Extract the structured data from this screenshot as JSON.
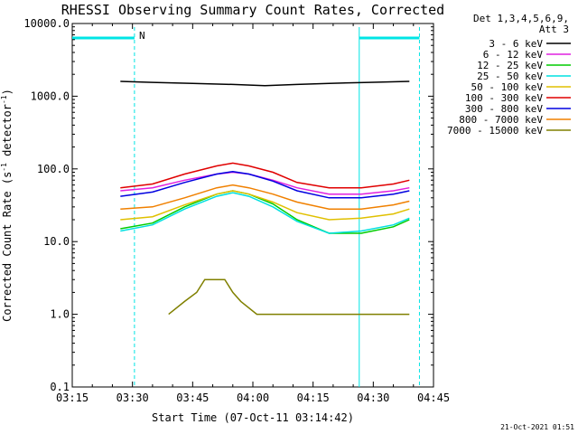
{
  "chart_data": {
    "type": "line",
    "title": "RHESSI Observing Summary Count Rates, Corrected",
    "xlabel": "Start Time (07-Oct-11 03:14:42)",
    "ylabel_main": "Corrected Count Rate (s",
    "ylabel_sup1": "-1",
    "ylabel_mid": " detector",
    "ylabel_sup2": "-1",
    "ylabel_end": ")",
    "yscale": "log",
    "ylim": [
      0.1,
      10000
    ],
    "xlim_minutes": [
      0,
      90
    ],
    "x_tick_labels": [
      "03:15",
      "03:30",
      "03:45",
      "04:00",
      "04:15",
      "04:30",
      "04:45"
    ],
    "y_tick_labels": [
      "0.1",
      "1.0",
      "10.0",
      "100.0",
      "1000.0",
      "10000.0"
    ],
    "legend_header": [
      "Det 1,3,4,5,6,9,",
      "Att 3"
    ],
    "series": [
      {
        "name": "3 - 6 keV",
        "color": "#000000",
        "points": [
          [
            12,
            1600
          ],
          [
            20,
            1550
          ],
          [
            30,
            1500
          ],
          [
            40,
            1450
          ],
          [
            48,
            1400
          ],
          [
            56,
            1450
          ],
          [
            64,
            1500
          ],
          [
            74,
            1550
          ],
          [
            84,
            1600
          ]
        ]
      },
      {
        "name": "6 - 12 keV",
        "color": "#e020e0",
        "points": [
          [
            12,
            50
          ],
          [
            20,
            55
          ],
          [
            28,
            70
          ],
          [
            36,
            85
          ],
          [
            40,
            90
          ],
          [
            44,
            85
          ],
          [
            50,
            70
          ],
          [
            56,
            55
          ],
          [
            64,
            45
          ],
          [
            72,
            45
          ],
          [
            80,
            50
          ],
          [
            84,
            55
          ]
        ]
      },
      {
        "name": "12 - 25 keV",
        "color": "#00cc00",
        "points": [
          [
            12,
            15
          ],
          [
            20,
            18
          ],
          [
            28,
            30
          ],
          [
            36,
            45
          ],
          [
            40,
            50
          ],
          [
            44,
            45
          ],
          [
            50,
            33
          ],
          [
            56,
            20
          ],
          [
            64,
            13
          ],
          [
            72,
            13
          ],
          [
            80,
            16
          ],
          [
            84,
            20
          ]
        ]
      },
      {
        "name": "25 - 50 keV",
        "color": "#00e0e0",
        "points": [
          [
            12,
            14
          ],
          [
            20,
            17
          ],
          [
            28,
            28
          ],
          [
            36,
            42
          ],
          [
            40,
            47
          ],
          [
            44,
            42
          ],
          [
            50,
            30
          ],
          [
            56,
            19
          ],
          [
            64,
            13
          ],
          [
            72,
            14
          ],
          [
            80,
            17
          ],
          [
            84,
            21
          ]
        ]
      },
      {
        "name": "50 - 100 keV",
        "color": "#e0c000",
        "points": [
          [
            12,
            20
          ],
          [
            20,
            22
          ],
          [
            28,
            32
          ],
          [
            36,
            45
          ],
          [
            40,
            50
          ],
          [
            44,
            45
          ],
          [
            50,
            35
          ],
          [
            56,
            25
          ],
          [
            64,
            20
          ],
          [
            72,
            21
          ],
          [
            80,
            24
          ],
          [
            84,
            28
          ]
        ]
      },
      {
        "name": "100 - 300 keV",
        "color": "#e00000",
        "points": [
          [
            12,
            55
          ],
          [
            20,
            62
          ],
          [
            28,
            85
          ],
          [
            36,
            110
          ],
          [
            40,
            120
          ],
          [
            44,
            110
          ],
          [
            50,
            90
          ],
          [
            56,
            65
          ],
          [
            64,
            55
          ],
          [
            72,
            55
          ],
          [
            80,
            62
          ],
          [
            84,
            70
          ]
        ]
      },
      {
        "name": "300 - 800 keV",
        "color": "#0000e0",
        "points": [
          [
            12,
            42
          ],
          [
            20,
            48
          ],
          [
            28,
            65
          ],
          [
            36,
            85
          ],
          [
            40,
            92
          ],
          [
            44,
            85
          ],
          [
            50,
            68
          ],
          [
            56,
            50
          ],
          [
            64,
            40
          ],
          [
            72,
            40
          ],
          [
            80,
            45
          ],
          [
            84,
            50
          ]
        ]
      },
      {
        "name": "800 - 7000 keV",
        "color": "#f08000",
        "points": [
          [
            12,
            28
          ],
          [
            20,
            30
          ],
          [
            28,
            40
          ],
          [
            36,
            55
          ],
          [
            40,
            60
          ],
          [
            44,
            55
          ],
          [
            50,
            45
          ],
          [
            56,
            35
          ],
          [
            64,
            28
          ],
          [
            72,
            28
          ],
          [
            80,
            32
          ],
          [
            84,
            36
          ]
        ]
      },
      {
        "name": "7000 - 15000 keV",
        "color": "#808000",
        "points": [
          [
            24,
            1
          ],
          [
            28,
            1.5
          ],
          [
            31,
            2
          ],
          [
            33,
            3
          ],
          [
            38,
            3
          ],
          [
            40,
            2
          ],
          [
            42,
            1.5
          ],
          [
            46,
            1
          ],
          [
            50,
            1
          ],
          [
            75,
            1
          ],
          [
            80,
            1
          ],
          [
            84,
            1
          ]
        ]
      }
    ],
    "flag_label": "N",
    "footer_date": "21-Oct-2021 01:51"
  },
  "colors": {
    "night_flag": "#00e5e5"
  }
}
